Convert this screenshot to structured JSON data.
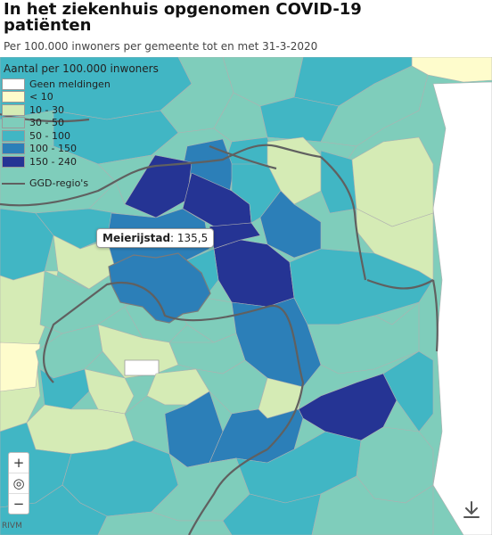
{
  "header": {
    "title": "In het ziekenhuis opgenomen COVID-19 patiënten",
    "subtitle": "Per 100.000 inwoners per gemeente tot en met 31-3-2020"
  },
  "legend": {
    "title": "Aantal per 100.000 inwoners",
    "items": [
      {
        "label": "Geen meldingen",
        "color": "#ffffff"
      },
      {
        "label": "< 10",
        "color": "#fefccc"
      },
      {
        "label": "10 - 30",
        "color": "#d5ebb5"
      },
      {
        "label": "30 - 50",
        "color": "#7fcdbb"
      },
      {
        "label": "50 - 100",
        "color": "#41b6c4"
      },
      {
        "label": "100 - 150",
        "color": "#2c7fb8"
      },
      {
        "label": "150 - 240",
        "color": "#253494"
      }
    ],
    "region_label": "GGD-regio's",
    "region_color": "#606060"
  },
  "tooltip": {
    "name": "Meierijstad",
    "value_text": ": 135,5"
  },
  "controls": {
    "zoom_in": "+",
    "locate": "◎",
    "zoom_out": "−"
  },
  "credit": "RIVM"
}
